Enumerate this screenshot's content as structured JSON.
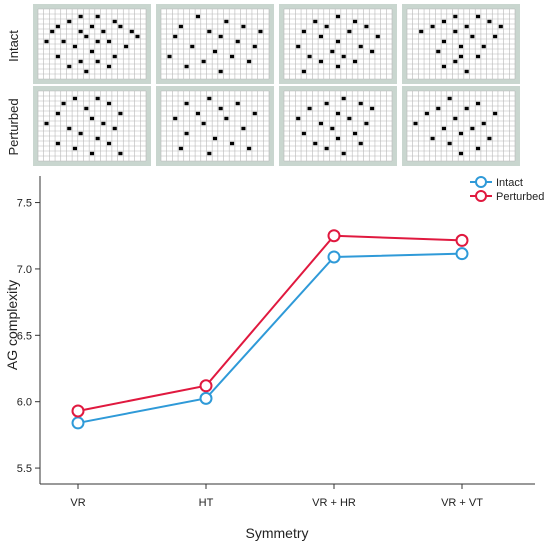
{
  "panels": {
    "row_labels": [
      "Intact",
      "Perturbed"
    ],
    "grid": {
      "cols": 19,
      "rows": 14
    },
    "patterns": [
      [
        [
          [
            7,
            1
          ],
          [
            10,
            1
          ],
          [
            5,
            2
          ],
          [
            13,
            2
          ],
          [
            3,
            3
          ],
          [
            9,
            3
          ],
          [
            14,
            3
          ],
          [
            2,
            4
          ],
          [
            7,
            4
          ],
          [
            11,
            4
          ],
          [
            16,
            4
          ],
          [
            8,
            5
          ],
          [
            17,
            5
          ],
          [
            1,
            6
          ],
          [
            4,
            6
          ],
          [
            10,
            6
          ],
          [
            12,
            6
          ],
          [
            6,
            7
          ],
          [
            15,
            7
          ],
          [
            9,
            8
          ],
          [
            3,
            9
          ],
          [
            13,
            9
          ],
          [
            7,
            10
          ],
          [
            10,
            10
          ],
          [
            5,
            11
          ],
          [
            12,
            11
          ],
          [
            8,
            12
          ]
        ],
        [
          [
            6,
            1
          ],
          [
            11,
            2
          ],
          [
            3,
            3
          ],
          [
            14,
            3
          ],
          [
            8,
            4
          ],
          [
            17,
            4
          ],
          [
            2,
            5
          ],
          [
            10,
            5
          ],
          [
            13,
            6
          ],
          [
            5,
            7
          ],
          [
            16,
            7
          ],
          [
            9,
            8
          ],
          [
            1,
            9
          ],
          [
            12,
            9
          ],
          [
            7,
            10
          ],
          [
            15,
            10
          ],
          [
            4,
            11
          ],
          [
            10,
            12
          ]
        ],
        [
          [
            9,
            1
          ],
          [
            5,
            2
          ],
          [
            12,
            2
          ],
          [
            7,
            3
          ],
          [
            14,
            3
          ],
          [
            3,
            4
          ],
          [
            11,
            4
          ],
          [
            6,
            5
          ],
          [
            16,
            5
          ],
          [
            9,
            6
          ],
          [
            2,
            7
          ],
          [
            13,
            7
          ],
          [
            8,
            8
          ],
          [
            15,
            8
          ],
          [
            4,
            9
          ],
          [
            10,
            9
          ],
          [
            6,
            10
          ],
          [
            12,
            10
          ],
          [
            9,
            11
          ],
          [
            3,
            12
          ]
        ],
        [
          [
            8,
            1
          ],
          [
            12,
            1
          ],
          [
            6,
            2
          ],
          [
            14,
            2
          ],
          [
            4,
            3
          ],
          [
            10,
            3
          ],
          [
            16,
            3
          ],
          [
            2,
            4
          ],
          [
            8,
            4
          ],
          [
            11,
            5
          ],
          [
            15,
            5
          ],
          [
            6,
            6
          ],
          [
            9,
            7
          ],
          [
            13,
            7
          ],
          [
            5,
            8
          ],
          [
            9,
            9
          ],
          [
            12,
            9
          ],
          [
            8,
            10
          ],
          [
            6,
            11
          ],
          [
            10,
            12
          ]
        ]
      ],
      [
        [
          [
            6,
            1
          ],
          [
            10,
            1
          ],
          [
            4,
            2
          ],
          [
            12,
            2
          ],
          [
            8,
            3
          ],
          [
            3,
            4
          ],
          [
            14,
            4
          ],
          [
            9,
            5
          ],
          [
            1,
            6
          ],
          [
            11,
            6
          ],
          [
            5,
            7
          ],
          [
            13,
            7
          ],
          [
            7,
            8
          ],
          [
            10,
            9
          ],
          [
            3,
            10
          ],
          [
            12,
            10
          ],
          [
            6,
            11
          ],
          [
            9,
            12
          ],
          [
            14,
            12
          ]
        ],
        [
          [
            8,
            1
          ],
          [
            4,
            2
          ],
          [
            13,
            2
          ],
          [
            10,
            3
          ],
          [
            6,
            4
          ],
          [
            16,
            4
          ],
          [
            2,
            5
          ],
          [
            11,
            5
          ],
          [
            7,
            6
          ],
          [
            14,
            7
          ],
          [
            4,
            8
          ],
          [
            9,
            9
          ],
          [
            12,
            10
          ],
          [
            3,
            11
          ],
          [
            15,
            11
          ],
          [
            8,
            12
          ]
        ],
        [
          [
            10,
            1
          ],
          [
            7,
            2
          ],
          [
            13,
            2
          ],
          [
            4,
            3
          ],
          [
            15,
            3
          ],
          [
            9,
            4
          ],
          [
            2,
            5
          ],
          [
            11,
            5
          ],
          [
            6,
            6
          ],
          [
            14,
            6
          ],
          [
            8,
            7
          ],
          [
            3,
            8
          ],
          [
            12,
            8
          ],
          [
            9,
            9
          ],
          [
            5,
            10
          ],
          [
            13,
            10
          ],
          [
            7,
            11
          ],
          [
            10,
            12
          ]
        ],
        [
          [
            7,
            1
          ],
          [
            12,
            2
          ],
          [
            5,
            3
          ],
          [
            10,
            3
          ],
          [
            3,
            4
          ],
          [
            15,
            4
          ],
          [
            8,
            5
          ],
          [
            1,
            6
          ],
          [
            13,
            6
          ],
          [
            6,
            7
          ],
          [
            11,
            7
          ],
          [
            9,
            8
          ],
          [
            4,
            9
          ],
          [
            14,
            9
          ],
          [
            7,
            10
          ],
          [
            12,
            11
          ],
          [
            9,
            12
          ]
        ]
      ]
    ]
  },
  "chart_data": {
    "type": "line",
    "categories": [
      "VR",
      "HT",
      "VR + HR",
      "VR + VT"
    ],
    "series": [
      {
        "name": "Intact",
        "color": "#2f9ad8",
        "values": [
          5.84,
          6.025,
          7.09,
          7.115
        ]
      },
      {
        "name": "Perturbed",
        "color": "#e0193f",
        "values": [
          5.93,
          6.12,
          7.25,
          7.215
        ]
      }
    ],
    "xlabel": "Symmetry",
    "ylabel": "AG complexity",
    "ylim": [
      5.38,
      7.7
    ],
    "yticks": [
      5.5,
      6.0,
      6.5,
      7.0,
      7.5
    ],
    "ytick_labels": [
      "5.5",
      "6.0",
      "6.5",
      "7.0",
      "7.5"
    ],
    "legend_position": "top-right",
    "grid": false
  }
}
